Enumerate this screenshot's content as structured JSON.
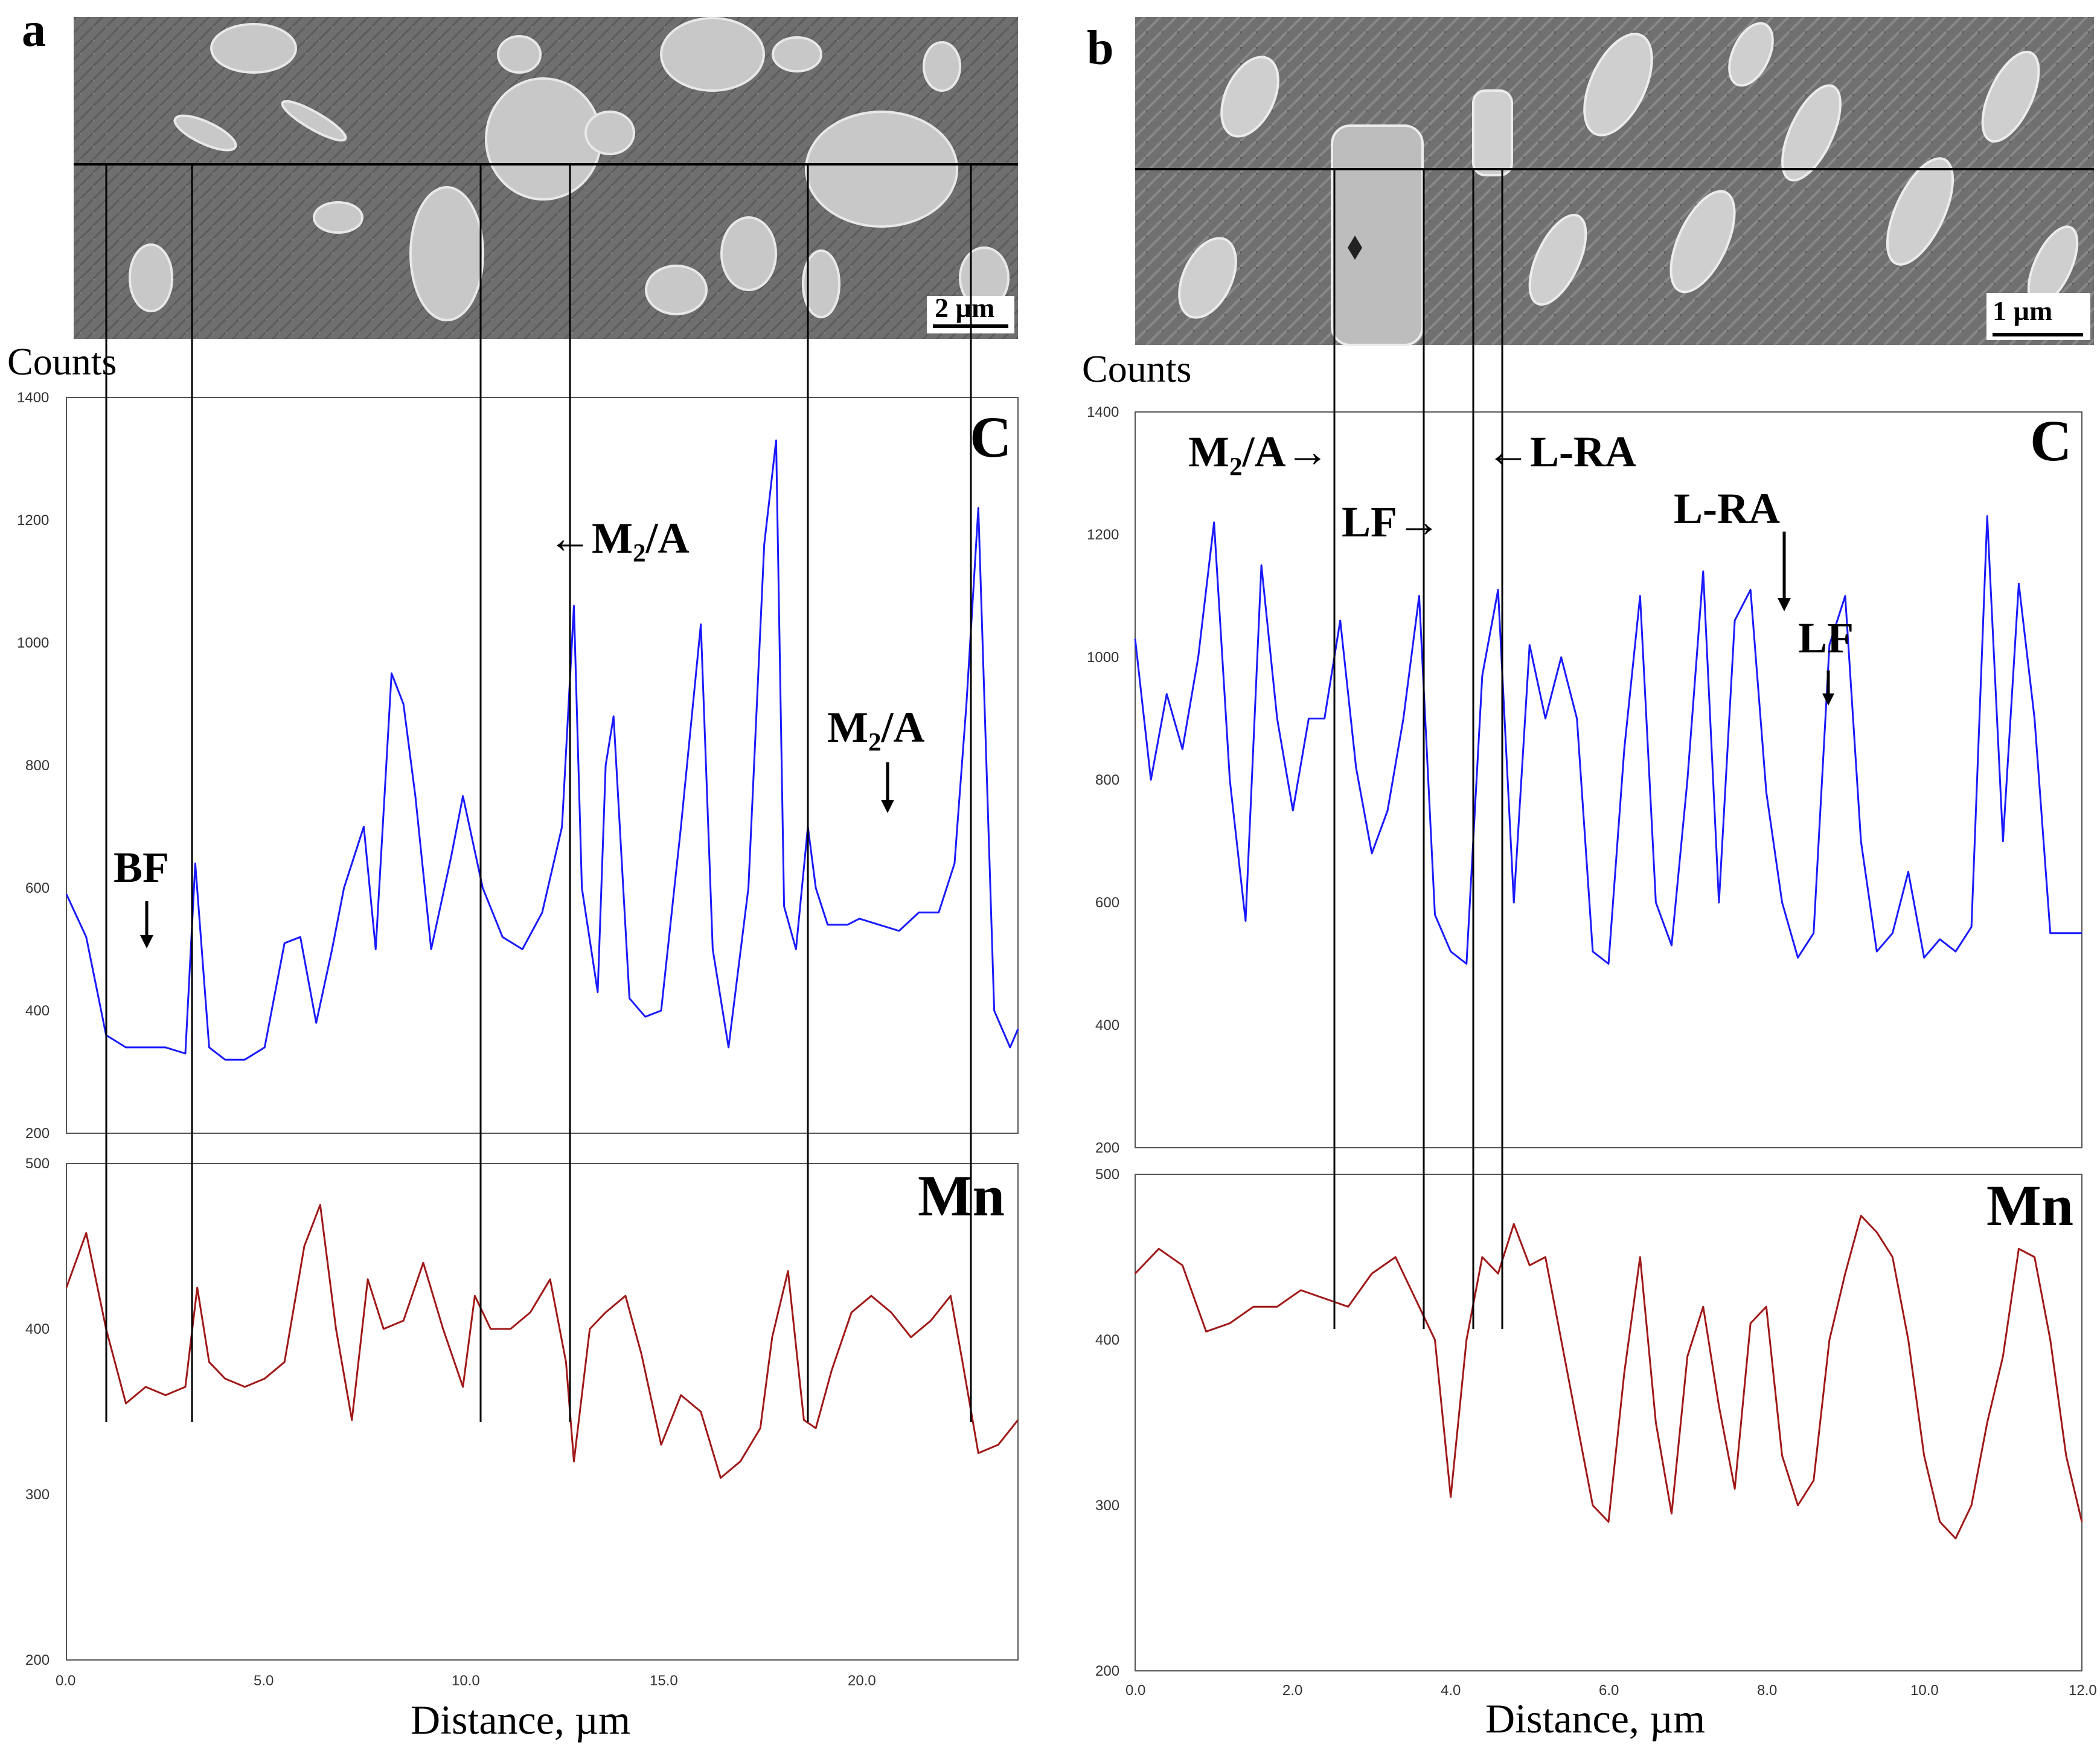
{
  "panels": [
    {
      "label": "a",
      "scale_bar": "2 µm",
      "counts_label": "Counts",
      "x_title": "Distance, µm",
      "x_ticks": [
        "0.0",
        "5.0",
        "10.0",
        "15.0",
        "20.0"
      ],
      "c_yticks": [
        "1400",
        "1200",
        "1000",
        "800",
        "600",
        "400",
        "200"
      ],
      "mn_yticks": [
        "500",
        "400",
        "300",
        "200"
      ],
      "c_label": "C",
      "mn_label": "Mn",
      "annotations": [
        "BF",
        "←M₂/A",
        "M₂/A"
      ]
    },
    {
      "label": "b",
      "scale_bar": "1 µm",
      "counts_label": "Counts",
      "x_title": "Distance, µm",
      "x_ticks": [
        "0.0",
        "2.0",
        "4.0",
        "6.0",
        "8.0",
        "10.0",
        "12.0"
      ],
      "c_yticks": [
        "1400",
        "1200",
        "1000",
        "800",
        "600",
        "400",
        "200"
      ],
      "mn_yticks": [
        "500",
        "400",
        "300",
        "200"
      ],
      "c_label": "C",
      "mn_label": "Mn",
      "annotations": [
        "M₂/A→",
        "LF→",
        "←L-RA",
        "L-RA",
        "LF"
      ]
    }
  ],
  "chart_data": [
    {
      "type": "line",
      "panel": "a",
      "title": "C line profile",
      "xlabel": "Distance, µm",
      "ylabel": "Counts",
      "xlim": [
        0,
        24
      ],
      "ylim": [
        200,
        1400
      ],
      "color": "#1a1aff",
      "x": [
        0,
        0.5,
        1.0,
        1.5,
        2.0,
        2.5,
        3.0,
        3.25,
        3.6,
        4.0,
        4.5,
        5.0,
        5.5,
        5.9,
        6.3,
        6.7,
        7.0,
        7.5,
        7.8,
        8.2,
        8.5,
        8.8,
        9.2,
        9.7,
        10.0,
        10.5,
        11.0,
        11.5,
        12.0,
        12.5,
        12.8,
        13.0,
        13.4,
        13.6,
        13.8,
        14.2,
        14.6,
        15.0,
        15.5,
        16.0,
        16.3,
        16.7,
        17.2,
        17.6,
        17.9,
        18.1,
        18.4,
        18.7,
        18.9,
        19.2,
        19.7,
        20.0,
        20.5,
        21.0,
        21.5,
        22.0,
        22.4,
        22.7,
        23.0,
        23.4,
        23.8,
        24.0
      ],
      "y": [
        590,
        520,
        360,
        340,
        340,
        340,
        330,
        640,
        340,
        320,
        320,
        340,
        510,
        520,
        380,
        500,
        600,
        700,
        500,
        950,
        900,
        750,
        500,
        650,
        750,
        600,
        520,
        500,
        560,
        700,
        1060,
        600,
        430,
        800,
        880,
        420,
        390,
        400,
        700,
        1030,
        500,
        340,
        600,
        1160,
        1330,
        570,
        500,
        700,
        600,
        540,
        540,
        550,
        540,
        530,
        560,
        560,
        640,
        900,
        1220,
        400,
        340,
        370
      ]
    },
    {
      "type": "line",
      "panel": "a",
      "title": "Mn line profile",
      "xlabel": "Distance, µm",
      "ylabel": "Counts",
      "xlim": [
        0,
        24
      ],
      "ylim": [
        200,
        500
      ],
      "color": "#a01818",
      "x": [
        0,
        0.5,
        1.0,
        1.5,
        2.0,
        2.5,
        3.0,
        3.3,
        3.6,
        4.0,
        4.5,
        5.0,
        5.5,
        6.0,
        6.4,
        6.8,
        7.2,
        7.6,
        8.0,
        8.5,
        9.0,
        9.5,
        10.0,
        10.3,
        10.7,
        11.2,
        11.7,
        12.2,
        12.6,
        12.8,
        13.2,
        13.6,
        14.1,
        14.5,
        15.0,
        15.5,
        16.0,
        16.5,
        17.0,
        17.5,
        17.8,
        18.2,
        18.6,
        18.9,
        19.3,
        19.8,
        20.3,
        20.8,
        21.3,
        21.8,
        22.3,
        22.6,
        23.0,
        23.5,
        24.0
      ],
      "y": [
        425,
        458,
        400,
        355,
        365,
        360,
        365,
        425,
        380,
        370,
        365,
        370,
        380,
        450,
        475,
        400,
        345,
        430,
        400,
        405,
        440,
        400,
        365,
        420,
        400,
        400,
        410,
        430,
        380,
        320,
        400,
        410,
        420,
        385,
        330,
        360,
        350,
        310,
        320,
        340,
        395,
        435,
        345,
        340,
        375,
        410,
        420,
        410,
        395,
        405,
        420,
        380,
        325,
        330,
        345
      ]
    },
    {
      "type": "line",
      "panel": "b",
      "title": "C line profile",
      "xlabel": "Distance, µm",
      "ylabel": "Counts",
      "xlim": [
        0,
        12
      ],
      "ylim": [
        200,
        1400
      ],
      "color": "#1a1aff",
      "x": [
        0,
        0.2,
        0.4,
        0.6,
        0.8,
        1.0,
        1.2,
        1.4,
        1.6,
        1.8,
        2.0,
        2.2,
        2.4,
        2.6,
        2.8,
        3.0,
        3.2,
        3.4,
        3.6,
        3.8,
        4.0,
        4.2,
        4.4,
        4.6,
        4.8,
        5.0,
        5.2,
        5.4,
        5.6,
        5.8,
        6.0,
        6.2,
        6.4,
        6.6,
        6.8,
        7.0,
        7.2,
        7.4,
        7.6,
        7.8,
        8.0,
        8.2,
        8.4,
        8.6,
        8.8,
        9.0,
        9.2,
        9.4,
        9.6,
        9.8,
        10.0,
        10.2,
        10.4,
        10.6,
        10.8,
        11.0,
        11.2,
        11.4,
        11.6,
        11.8,
        12.0
      ],
      "y": [
        1030,
        800,
        940,
        850,
        1000,
        1220,
        800,
        570,
        1150,
        900,
        750,
        900,
        900,
        1060,
        820,
        680,
        750,
        900,
        1100,
        580,
        520,
        500,
        970,
        1110,
        600,
        1020,
        900,
        1000,
        900,
        520,
        500,
        850,
        1100,
        600,
        530,
        800,
        1140,
        600,
        1060,
        1110,
        780,
        600,
        510,
        550,
        1020,
        1100,
        700,
        520,
        550,
        650,
        510,
        540,
        520,
        560,
        1230,
        700,
        1120,
        900,
        550,
        550,
        550
      ]
    },
    {
      "type": "line",
      "panel": "b",
      "title": "Mn line profile",
      "xlabel": "Distance, µm",
      "ylabel": "Counts",
      "xlim": [
        0,
        12
      ],
      "ylim": [
        200,
        500
      ],
      "color": "#a01818",
      "x": [
        0,
        0.3,
        0.6,
        0.9,
        1.2,
        1.5,
        1.8,
        2.1,
        2.4,
        2.7,
        3.0,
        3.3,
        3.6,
        3.8,
        4.0,
        4.2,
        4.4,
        4.6,
        4.8,
        5.0,
        5.2,
        5.4,
        5.6,
        5.8,
        6.0,
        6.2,
        6.4,
        6.6,
        6.8,
        7.0,
        7.2,
        7.4,
        7.6,
        7.8,
        8.0,
        8.2,
        8.4,
        8.6,
        8.8,
        9.0,
        9.2,
        9.4,
        9.6,
        9.8,
        10.0,
        10.2,
        10.4,
        10.6,
        10.8,
        11.0,
        11.2,
        11.4,
        11.6,
        11.8,
        12.0
      ],
      "y": [
        440,
        455,
        445,
        405,
        410,
        420,
        420,
        430,
        425,
        420,
        440,
        450,
        420,
        400,
        305,
        400,
        450,
        440,
        470,
        445,
        450,
        400,
        350,
        300,
        290,
        380,
        450,
        350,
        295,
        390,
        420,
        360,
        310,
        410,
        420,
        330,
        300,
        315,
        400,
        440,
        475,
        465,
        450,
        400,
        330,
        290,
        280,
        300,
        350,
        390,
        455,
        450,
        400,
        330,
        290
      ]
    }
  ]
}
